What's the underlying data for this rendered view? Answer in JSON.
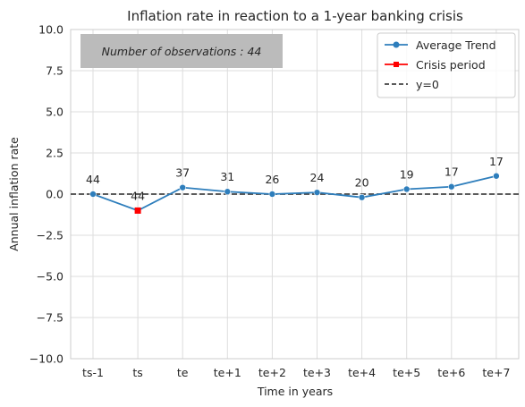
{
  "chart_data": {
    "type": "line",
    "title": "Inflation rate in reaction to a 1-year banking crisis",
    "xlabel": "Time in years",
    "ylabel": "Annual inflation rate",
    "categories": [
      "ts-1",
      "ts",
      "te",
      "te+1",
      "te+2",
      "te+3",
      "te+4",
      "te+5",
      "te+6",
      "te+7"
    ],
    "ylim": [
      -10.0,
      10.0
    ],
    "yticks": [
      "10.0",
      "7.5",
      "5.0",
      "2.5",
      "0.0",
      "−2.5",
      "−5.0",
      "−7.5",
      "−10.0"
    ],
    "ytick_values": [
      10.0,
      7.5,
      5.0,
      2.5,
      0.0,
      -2.5,
      -5.0,
      -7.5,
      -10.0
    ],
    "grid": true,
    "legend_position": "top-right",
    "series": [
      {
        "name": "Average Trend",
        "values": [
          0.0,
          -1.0,
          0.4,
          0.15,
          0.0,
          0.1,
          -0.2,
          0.3,
          0.45,
          1.1
        ],
        "color": "#2e7ebc",
        "marker": "circle"
      }
    ],
    "crisis_period": {
      "name": "Crisis period",
      "index": 1,
      "color": "#ff0000",
      "marker": "square"
    },
    "reference_line": {
      "name": "y=0",
      "value": 0.0,
      "color": "#444444",
      "style": "dashed"
    },
    "observation_counts": [
      "44",
      "44",
      "37",
      "31",
      "26",
      "24",
      "20",
      "19",
      "17",
      "17"
    ],
    "annotation": "Number of observations : 44",
    "annotation_box_color": "#bbbbbb"
  }
}
